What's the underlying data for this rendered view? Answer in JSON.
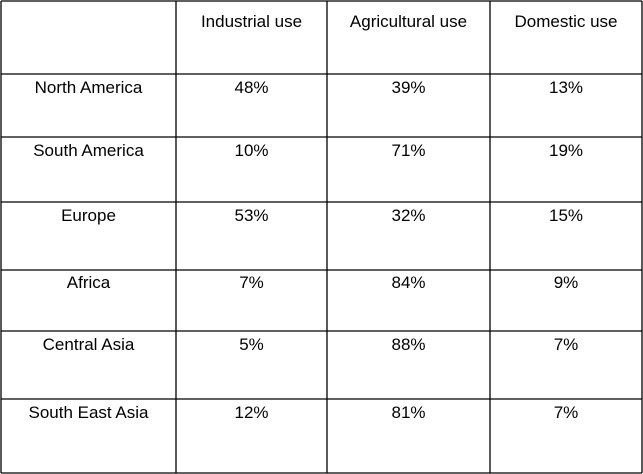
{
  "chart_data": {
    "type": "table",
    "columns": [
      "",
      "Industrial use",
      "Agricultural use",
      "Domestic use"
    ],
    "rows": [
      {
        "region": "North America",
        "values": [
          "48%",
          "39%",
          "13%"
        ]
      },
      {
        "region": "South America",
        "values": [
          "10%",
          "71%",
          "19%"
        ]
      },
      {
        "region": "Europe",
        "values": [
          "53%",
          "32%",
          "15%"
        ]
      },
      {
        "region": "Africa",
        "values": [
          "7%",
          "84%",
          "9%"
        ]
      },
      {
        "region": "Central Asia",
        "values": [
          "5%",
          "88%",
          "7%"
        ]
      },
      {
        "region": "South East Asia",
        "values": [
          "12%",
          "81%",
          "7%"
        ]
      }
    ]
  }
}
